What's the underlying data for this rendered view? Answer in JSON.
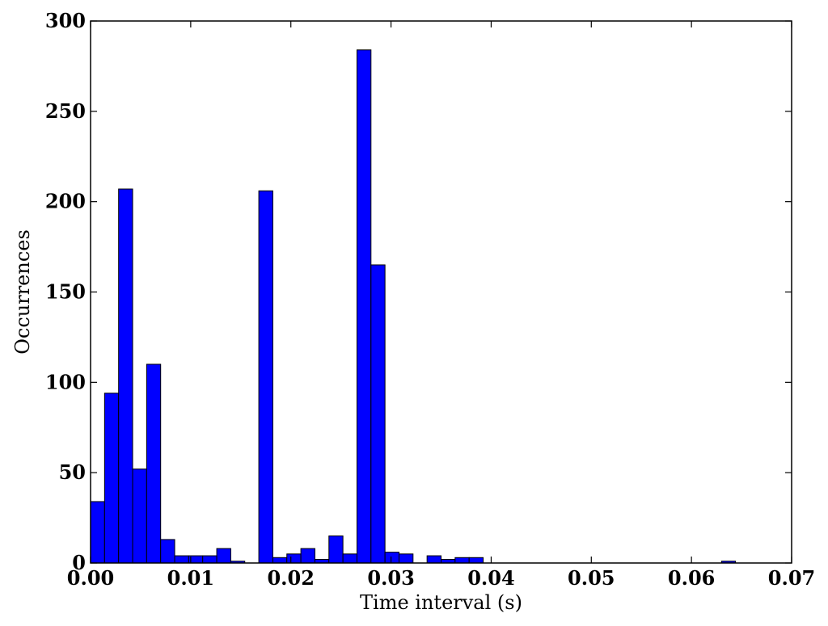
{
  "chart_data": {
    "type": "bar",
    "subtype": "histogram",
    "title": "",
    "xlabel": "Time interval (s)",
    "ylabel": "Occurrences",
    "xlim": [
      0.0,
      0.07
    ],
    "ylim": [
      0,
      300
    ],
    "x_ticks": [
      "0.00",
      "0.01",
      "0.02",
      "0.03",
      "0.04",
      "0.05",
      "0.06",
      "0.07"
    ],
    "y_ticks": [
      "0",
      "50",
      "100",
      "150",
      "200",
      "250",
      "300"
    ],
    "grid": false,
    "legend": "none",
    "bar_color": "#0000ff",
    "edge_color": "#000000",
    "bin_width": 0.0014,
    "bin_start": 0.0,
    "values": [
      34,
      94,
      207,
      52,
      110,
      13,
      4,
      4,
      4,
      8,
      1,
      0,
      206,
      3,
      5,
      8,
      2,
      15,
      5,
      284,
      165,
      6,
      5,
      0,
      4,
      2,
      3,
      3,
      0,
      0,
      0,
      0,
      0,
      0,
      0,
      0,
      0,
      0,
      0,
      0,
      0,
      0,
      0,
      0,
      0,
      1,
      0,
      0,
      0,
      0
    ]
  }
}
